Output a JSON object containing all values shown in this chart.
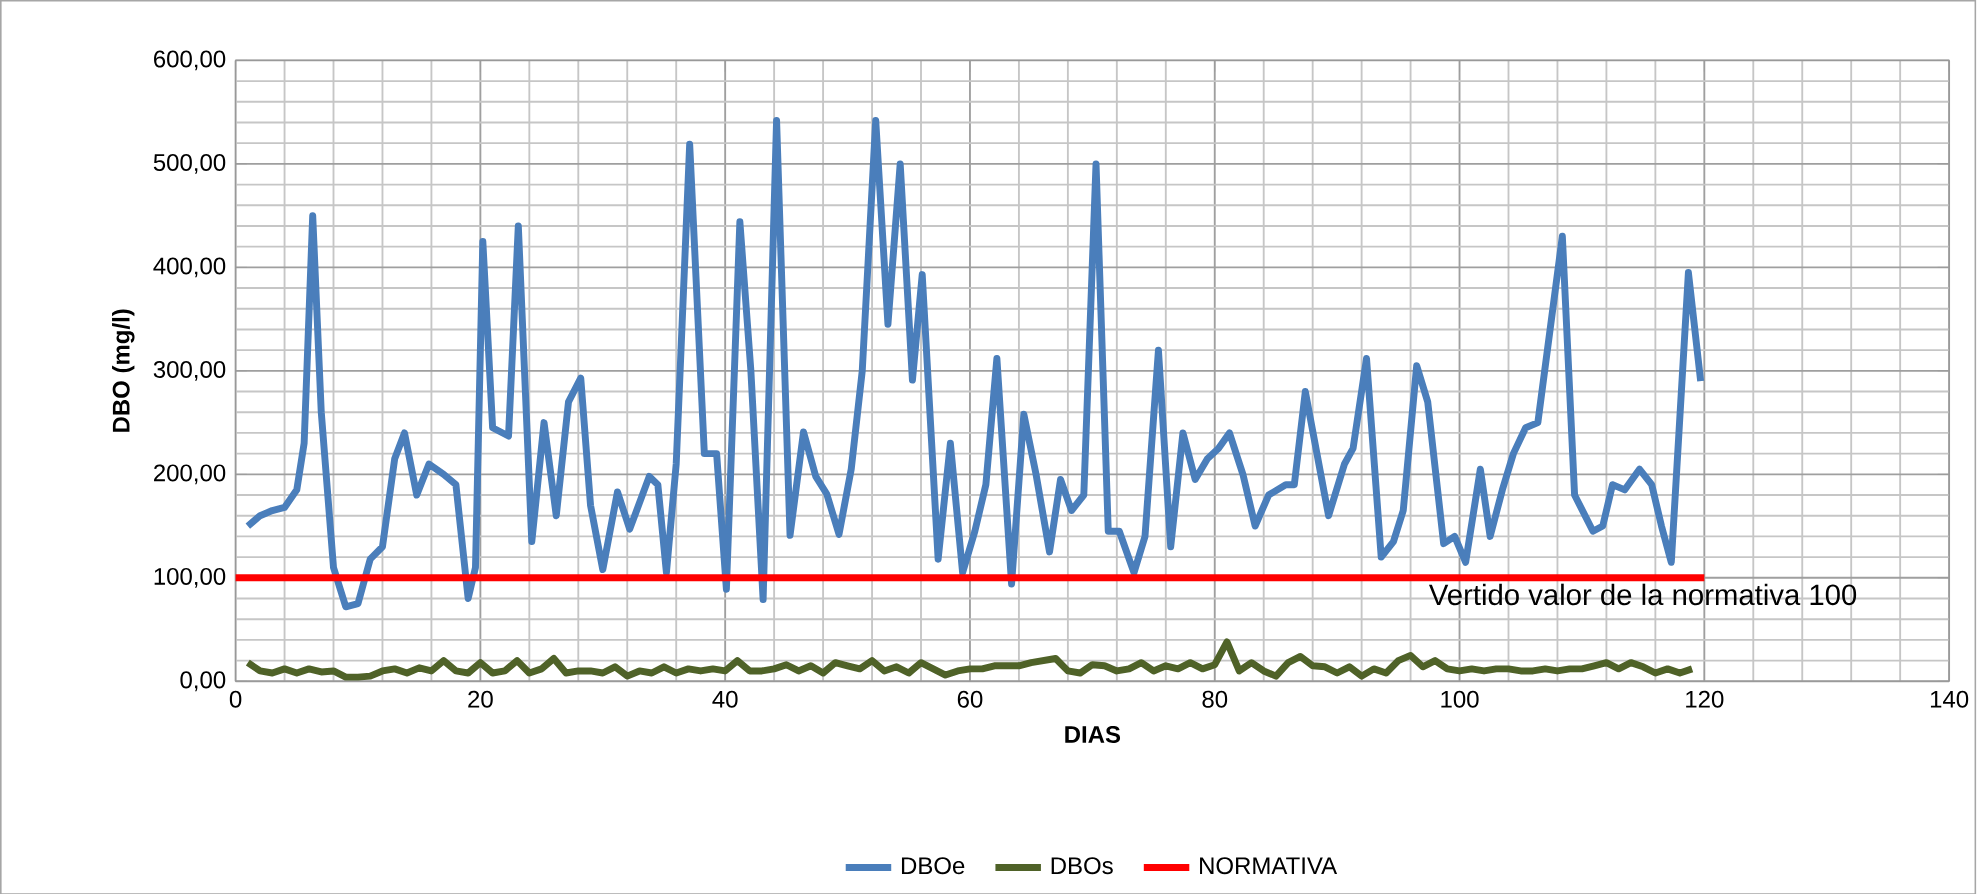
{
  "chart_data": {
    "type": "line",
    "xlabel": "DIAS",
    "ylabel": "DBO (mg/l)",
    "xlim": [
      0,
      140
    ],
    "xticks": [
      0,
      20,
      40,
      60,
      80,
      100,
      120,
      140
    ],
    "ylim": [
      0,
      600
    ],
    "yticks": [
      {
        "value": 0,
        "label": "0,00"
      },
      {
        "value": 100,
        "label": "100,00"
      },
      {
        "value": 200,
        "label": "200,00"
      },
      {
        "value": 300,
        "label": "300,00"
      },
      {
        "value": 400,
        "label": "400,00"
      },
      {
        "value": 500,
        "label": "500,00"
      },
      {
        "value": 600,
        "label": "600,00"
      }
    ],
    "grid": true,
    "legend": "bottom",
    "line_style": "solid",
    "marker": "none",
    "series": [
      {
        "name": "DBOe",
        "color": "#4a7ebb",
        "x": [
          1,
          2,
          3,
          4,
          5,
          5.6,
          6.3,
          7,
          8,
          9,
          10,
          11,
          12,
          13,
          13.8,
          14.8,
          15.8,
          17,
          18,
          19,
          19.6,
          20.2,
          21,
          22.3,
          23.1,
          24.2,
          25.2,
          26.2,
          27.2,
          28.2,
          29,
          30,
          31.2,
          32.2,
          33.8,
          34.5,
          35.2,
          36,
          37.1,
          38.3,
          39.3,
          40.1,
          41.2,
          42.1,
          43.1,
          44.2,
          45.3,
          46.4,
          47.4,
          48.3,
          49.3,
          50.3,
          51.2,
          52.3,
          53.3,
          54.3,
          55.3,
          56.1,
          57.4,
          58.4,
          59.4,
          60.4,
          61.3,
          62.2,
          63.4,
          64.4,
          65.4,
          66.5,
          67.4,
          68.3,
          69.3,
          70.3,
          71.3,
          72.2,
          73.4,
          74.3,
          75.4,
          76.4,
          77.4,
          78.4,
          79.4,
          80.3,
          81.2,
          82.3,
          83.3,
          84.4,
          85.8,
          86.5,
          87.4,
          89.3,
          90.6,
          91.3,
          92.4,
          93.6,
          94.6,
          95.4,
          96.5,
          97.4,
          98.7,
          99.6,
          100.5,
          101.7,
          102.5,
          103.5,
          104.4,
          105.4,
          106.4,
          108.4,
          109.4,
          110.9,
          111.7,
          112.5,
          113.5,
          114.7,
          115.7,
          116.5,
          117.3,
          118.7,
          119.7
        ],
        "values": [
          150,
          160,
          165,
          168,
          185,
          230,
          450,
          260,
          110,
          72,
          75,
          118,
          130,
          215,
          240,
          180,
          210,
          200,
          190,
          80,
          110,
          425,
          245,
          237,
          440,
          135,
          250,
          160,
          270,
          293,
          170,
          108,
          183,
          147,
          198,
          190,
          105,
          210,
          519,
          220,
          220,
          89,
          444,
          300,
          79,
          542,
          141,
          241,
          198,
          181,
          142,
          205,
          300,
          542,
          345,
          500,
          291,
          393,
          118,
          230,
          105,
          145,
          190,
          312,
          94,
          258,
          200,
          125,
          195,
          165,
          180,
          500,
          145,
          145,
          105,
          140,
          320,
          130,
          240,
          195,
          215,
          225,
          240,
          200,
          150,
          180,
          190,
          190,
          280,
          160,
          210,
          225,
          312,
          120,
          135,
          165,
          305,
          270,
          133,
          140,
          115,
          205,
          140,
          185,
          220,
          245,
          250,
          430,
          180,
          145,
          150,
          190,
          185,
          205,
          190,
          150,
          115,
          395,
          290
        ]
      },
      {
        "name": "DBOs",
        "color": "#4f6228",
        "x": [
          1,
          2,
          3,
          4,
          5,
          6,
          7,
          8,
          9,
          10,
          11,
          12,
          13,
          14,
          15,
          16,
          17,
          18,
          19,
          20,
          21,
          22,
          23,
          24,
          25,
          26,
          27,
          28,
          29,
          30,
          31,
          32,
          33,
          34,
          35,
          36,
          37,
          38,
          39,
          40,
          41,
          42,
          43,
          44,
          45,
          46,
          47,
          48,
          49,
          50,
          51,
          52,
          53,
          54,
          55,
          56,
          57,
          58,
          59,
          60,
          61,
          62,
          63,
          64,
          65,
          66,
          67,
          68,
          69,
          70,
          71,
          72,
          73,
          74,
          75,
          76,
          77,
          78,
          79,
          80,
          81,
          82,
          83,
          84,
          85,
          86,
          87,
          88,
          89,
          90,
          91,
          92,
          93,
          94,
          95,
          96,
          97,
          98,
          99,
          100,
          101,
          102,
          103,
          104,
          105,
          106,
          107,
          108,
          109,
          110,
          111,
          112,
          113,
          114,
          115,
          116,
          117,
          118,
          119
        ],
        "values": [
          18,
          10,
          8,
          12,
          8,
          12,
          9,
          10,
          4,
          4,
          5,
          10,
          12,
          8,
          13,
          10,
          20,
          10,
          8,
          18,
          8,
          10,
          20,
          8,
          12,
          22,
          8,
          10,
          10,
          8,
          14,
          5,
          10,
          8,
          14,
          8,
          12,
          10,
          12,
          10,
          20,
          10,
          10,
          12,
          16,
          10,
          15,
          8,
          18,
          15,
          12,
          20,
          10,
          14,
          8,
          18,
          12,
          6,
          10,
          12,
          12,
          15,
          15,
          15,
          18,
          20,
          22,
          10,
          8,
          16,
          15,
          10,
          12,
          18,
          10,
          15,
          12,
          18,
          12,
          16,
          38,
          10,
          18,
          10,
          5,
          18,
          24,
          15,
          14,
          8,
          14,
          5,
          12,
          8,
          20,
          25,
          14,
          20,
          12,
          10,
          12,
          10,
          12,
          12,
          10,
          10,
          12,
          10,
          12,
          12,
          15,
          18,
          12,
          18,
          14,
          8,
          12,
          8,
          12
        ]
      },
      {
        "name": "NORMATIVA",
        "color": "#ff0000",
        "x": [
          0,
          120
        ],
        "values": [
          100,
          100
        ]
      }
    ],
    "annotations": [
      {
        "text": "Vertido valor de la normativa 100",
        "x": 115,
        "y": 100
      }
    ]
  }
}
